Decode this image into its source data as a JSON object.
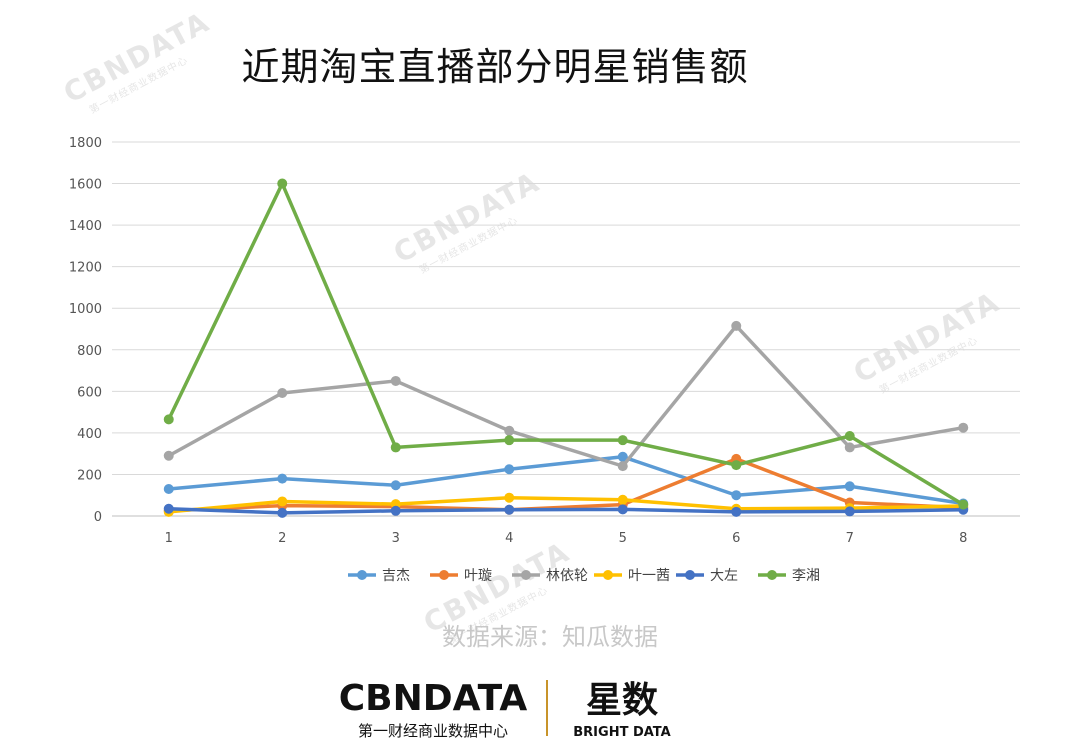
{
  "title": "近期淘宝直播部分明星销售额",
  "source_text": "数据来源：知瓜数据",
  "watermark": {
    "brand": "CBNDATA",
    "sub": "第一财经商业数据中心"
  },
  "footer": {
    "logo_left": "CBNDATA",
    "logo_left_sub": "第一财经商业数据中心",
    "logo_right": "星数",
    "logo_right_sub": "BRIGHT DATA"
  },
  "chart_data": {
    "type": "line",
    "title": "近期淘宝直播部分明星销售额",
    "categories": [
      "1",
      "2",
      "3",
      "4",
      "5",
      "6",
      "7",
      "8"
    ],
    "yticks": [
      "0",
      "200",
      "400",
      "600",
      "800",
      "1000",
      "1200",
      "1400",
      "1600",
      "1800"
    ],
    "ylim": [
      0,
      1800
    ],
    "grid": true,
    "legend_position": "bottom",
    "series": [
      {
        "name": "吉杰",
        "color": "#5b9bd5",
        "values": [
          130,
          180,
          148,
          225,
          285,
          100,
          143,
          60
        ]
      },
      {
        "name": "叶璇",
        "color": "#ed7d31",
        "values": [
          25,
          50,
          45,
          30,
          55,
          275,
          65,
          40
        ]
      },
      {
        "name": "林依轮",
        "color": "#a5a5a5",
        "values": [
          290,
          592,
          650,
          410,
          240,
          915,
          330,
          425
        ]
      },
      {
        "name": "叶一茜",
        "color": "#ffc000",
        "values": [
          20,
          70,
          57,
          88,
          78,
          35,
          38,
          48
        ]
      },
      {
        "name": "大左",
        "color": "#4472c4",
        "values": [
          35,
          15,
          25,
          30,
          32,
          20,
          22,
          30
        ]
      },
      {
        "name": "李湘",
        "color": "#70ad47",
        "values": [
          465,
          1600,
          330,
          365,
          365,
          245,
          385,
          55
        ]
      }
    ]
  }
}
